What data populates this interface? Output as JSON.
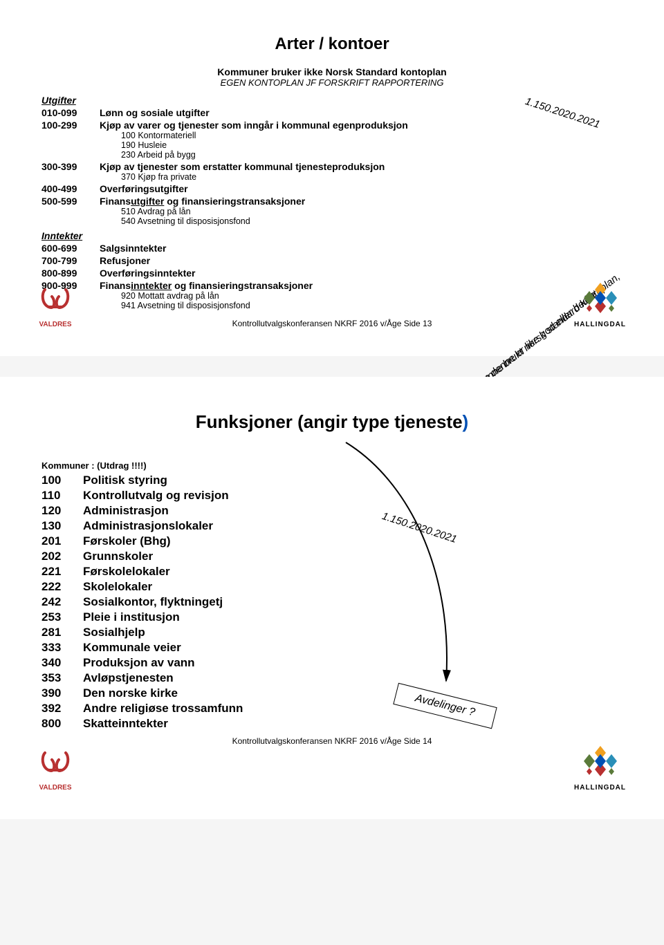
{
  "slide1": {
    "title": "Arter / kontoer",
    "sub1": "Kommuner bruker ikke Norsk Standard kontoplan",
    "sub2": "EGEN KONTOPLAN JF FORSKRIFT RAPPORTERING",
    "sec_utgifter": "Utgifter",
    "sec_inntekter": "Inntekter",
    "r1_code": "010-099",
    "r1_label": "Lønn og sosiale utgifter",
    "r2_code": "100-299",
    "r2_label": "Kjøp av varer og tjenester som inngår i kommunal egenproduksjon",
    "r2_s1": "100 Kontormateriell",
    "r2_s2": "190 Husleie",
    "r2_s3": "230 Arbeid på bygg",
    "r3_code": "300-399",
    "r3_label": "Kjøp av tjenester som erstatter kommunal tjenesteproduksjon",
    "r3_s1": "370 Kjøp fra private",
    "r4_code": "400-499",
    "r4_label": "Overføringsutgifter",
    "r5_code": "500-599",
    "r5_label_a": "Finans",
    "r5_label_u": "utgifter",
    "r5_label_b": " og finansieringstransaksjoner",
    "r5_s1": "510 Avdrag på lån",
    "r5_s2": "540 Avsetning til disposisjonsfond",
    "r6_code": "600-699",
    "r6_label": "Salgsinntekter",
    "r7_code": "700-799",
    "r7_label": "Refusjoner",
    "r8_code": "800-899",
    "r8_label": "Overføringsinntekter",
    "r9_code": "900-999",
    "r9_label_a": "Finans",
    "r9_label_u": "inntekter",
    "r9_label_b": " og finansieringstransaksjoner",
    "r9_s1": "920 Mottatt avdrag på lån",
    "r9_s2": "941 Avsetning til disposisjonsfond",
    "annot_top": "1.150.2020.2021",
    "annot_diag1": "Kunne brukt norsk standard kontoplan,",
    "annot_diag2": "men denne er like god eller bedre",
    "footer": "Kontrollutvalgskonferansen NKRF 2016 v/Åge  Side  13"
  },
  "slide2": {
    "title_a": "Funksjoner (angir type tjeneste",
    "title_b": ")",
    "heading": "Kommuner : (Utdrag !!!!)",
    "rows": [
      {
        "code": "100",
        "label": "Politisk styring"
      },
      {
        "code": "110",
        "label": "Kontrollutvalg og revisjon"
      },
      {
        "code": "120",
        "label": "Administrasjon"
      },
      {
        "code": "130",
        "label": "Administrasjonslokaler"
      },
      {
        "code": "201",
        "label": "Førskoler (Bhg)"
      },
      {
        "code": "202",
        "label": "Grunnskoler"
      },
      {
        "code": "221",
        "label": "Førskolelokaler"
      },
      {
        "code": "222",
        "label": "Skolelokaler"
      },
      {
        "code": "242",
        "label": "Sosialkontor, flyktningetj"
      },
      {
        "code": "253",
        "label": "Pleie i institusjon"
      },
      {
        "code": "281",
        "label": "Sosialhjelp"
      },
      {
        "code": "333",
        "label": "Kommunale veier"
      },
      {
        "code": "340",
        "label": "Produksjon av vann"
      },
      {
        "code": "353",
        "label": "Avløpstjenesten"
      },
      {
        "code": "390",
        "label": "Den norske kirke"
      },
      {
        "code": "392",
        "label": "Andre religiøse trossamfunn"
      },
      {
        "code": "800",
        "label": "Skatteinntekter"
      }
    ],
    "annot_top": "1.150.2020.2021",
    "box": "Avdelinger ?",
    "footer": "Kontrollutvalgskonferansen NKRF 2016 v/Åge  Side  14"
  },
  "logos": {
    "valdres": "VALDRES",
    "hallingdal": "HALLINGDAL",
    "valdres_color": "#b83030",
    "hall_colors": {
      "top": "#f0a020",
      "right": "#2a8fb8",
      "bottom": "#b83030",
      "left": "#5a7a3a",
      "center": "#0050b4"
    }
  }
}
